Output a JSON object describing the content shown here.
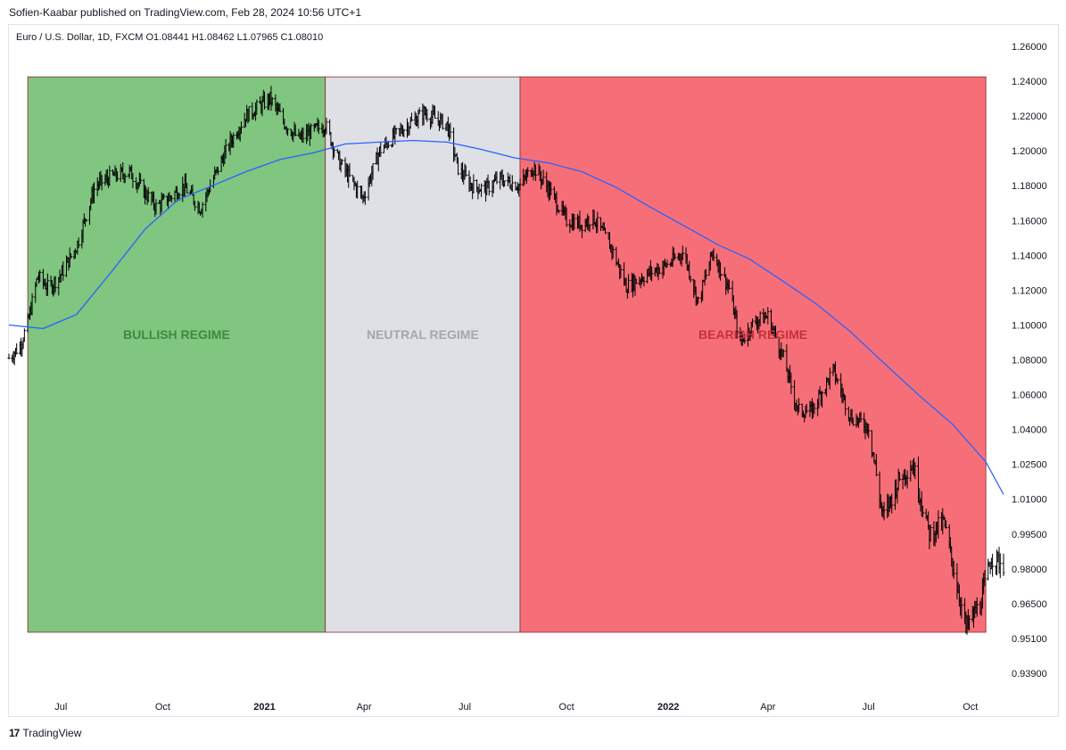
{
  "header": {
    "published": "Sofien-Kaabar published on TradingView.com, Feb 28, 2024 10:56 UTC+1",
    "symbol_line": "Euro / U.S. Dollar, 1D, FXCM  O1.08441  H1.08462  L1.07965  C1.08010"
  },
  "footer": {
    "logo_mark": "17",
    "brand": "TradingView"
  },
  "chart_data": {
    "type": "line",
    "title": "",
    "xlabel": "",
    "ylabel": "",
    "x_range": [
      "2020-05-15",
      "2022-10-31"
    ],
    "ylim": [
      0.939,
      1.26
    ],
    "y_tick_labels": [
      "1.26000",
      "1.24000",
      "1.22000",
      "1.20000",
      "1.18000",
      "1.16000",
      "1.14000",
      "1.12000",
      "1.10000",
      "1.08000",
      "1.06000",
      "1.04000",
      "1.02500",
      "1.01000",
      "0.99500",
      "0.98000",
      "0.96500",
      "0.95100",
      "0.93900"
    ],
    "y_tick_values": [
      1.26,
      1.24,
      1.22,
      1.2,
      1.18,
      1.16,
      1.14,
      1.12,
      1.1,
      1.08,
      1.06,
      1.04,
      1.025,
      1.01,
      0.995,
      0.98,
      0.965,
      0.951,
      0.939
    ],
    "x_tick_labels": [
      "Jul",
      "Oct",
      "2021",
      "Apr",
      "Jul",
      "Oct",
      "2022",
      "Apr",
      "Jul",
      "Oct"
    ],
    "x_tick_dates": [
      "2020-07-01",
      "2020-10-01",
      "2021-01-01",
      "2021-04-01",
      "2021-07-01",
      "2021-10-01",
      "2022-01-01",
      "2022-04-01",
      "2022-07-01",
      "2022-10-01"
    ],
    "x_tick_bold": [
      false,
      false,
      true,
      false,
      false,
      false,
      true,
      false,
      false,
      false
    ],
    "regimes": [
      {
        "label": "BULLISH REGIME",
        "start": "2020-06-01",
        "end": "2021-02-25",
        "y_top": 1.2425,
        "y_bottom": 0.9535,
        "fill": "#80c580",
        "text_color": "#3c8a3c"
      },
      {
        "label": "NEUTRAL REGIME",
        "start": "2021-02-25",
        "end": "2021-08-20",
        "y_top": 1.2425,
        "y_bottom": 0.9535,
        "fill": "#dfe0e6",
        "text_color": "#a3a6af"
      },
      {
        "label": "BEARISH REGIME",
        "start": "2021-08-20",
        "end": "2022-10-15",
        "y_top": 1.2425,
        "y_bottom": 0.9535,
        "fill": "#f66f78",
        "text_color": "#c7303c"
      }
    ],
    "series": [
      {
        "kind": "price",
        "color": "#000000",
        "x": [
          "2020-05-15",
          "2020-05-25",
          "2020-06-01",
          "2020-06-10",
          "2020-06-20",
          "2020-07-01",
          "2020-07-15",
          "2020-08-01",
          "2020-08-15",
          "2020-09-01",
          "2020-09-15",
          "2020-09-25",
          "2020-10-05",
          "2020-10-20",
          "2020-11-04",
          "2020-11-15",
          "2020-12-01",
          "2020-12-15",
          "2021-01-06",
          "2021-01-20",
          "2021-02-01",
          "2021-02-10",
          "2021-02-25",
          "2021-03-10",
          "2021-03-31",
          "2021-04-15",
          "2021-05-01",
          "2021-05-25",
          "2021-06-15",
          "2021-06-25",
          "2021-07-07",
          "2021-07-20",
          "2021-08-01",
          "2021-08-20",
          "2021-09-01",
          "2021-09-15",
          "2021-10-01",
          "2021-10-15",
          "2021-10-25",
          "2021-11-10",
          "2021-11-24",
          "2021-12-15",
          "2022-01-01",
          "2022-01-15",
          "2022-01-28",
          "2022-02-10",
          "2022-02-25",
          "2022-03-07",
          "2022-03-20",
          "2022-04-01",
          "2022-04-15",
          "2022-04-28",
          "2022-05-10",
          "2022-05-30",
          "2022-06-15",
          "2022-07-01",
          "2022-07-14",
          "2022-07-30",
          "2022-08-10",
          "2022-08-25",
          "2022-09-07",
          "2022-09-27",
          "2022-10-10",
          "2022-10-20",
          "2022-10-31"
        ],
        "values": [
          1.081,
          1.088,
          1.101,
          1.128,
          1.121,
          1.129,
          1.145,
          1.18,
          1.185,
          1.188,
          1.176,
          1.168,
          1.172,
          1.18,
          1.167,
          1.183,
          1.205,
          1.22,
          1.23,
          1.215,
          1.207,
          1.21,
          1.215,
          1.193,
          1.173,
          1.2,
          1.21,
          1.222,
          1.215,
          1.19,
          1.18,
          1.178,
          1.184,
          1.18,
          1.191,
          1.178,
          1.16,
          1.158,
          1.162,
          1.145,
          1.122,
          1.13,
          1.135,
          1.142,
          1.113,
          1.142,
          1.121,
          1.09,
          1.102,
          1.105,
          1.081,
          1.051,
          1.05,
          1.074,
          1.047,
          1.042,
          1.002,
          1.02,
          1.025,
          0.995,
          1.0,
          0.955,
          0.965,
          0.985,
          0.982
        ]
      },
      {
        "kind": "moving-average",
        "color": "#2962ff",
        "x": [
          "2020-05-15",
          "2020-06-15",
          "2020-07-15",
          "2020-08-15",
          "2020-09-15",
          "2020-10-15",
          "2020-11-15",
          "2020-12-15",
          "2021-01-15",
          "2021-02-15",
          "2021-03-15",
          "2021-04-15",
          "2021-05-15",
          "2021-06-15",
          "2021-07-15",
          "2021-08-15",
          "2021-09-15",
          "2021-10-15",
          "2021-11-15",
          "2021-12-15",
          "2022-01-15",
          "2022-02-15",
          "2022-03-15",
          "2022-04-15",
          "2022-05-15",
          "2022-06-15",
          "2022-07-15",
          "2022-08-15",
          "2022-09-15",
          "2022-10-15",
          "2022-10-31"
        ],
        "values": [
          1.1,
          1.098,
          1.106,
          1.13,
          1.155,
          1.172,
          1.18,
          1.188,
          1.195,
          1.199,
          1.204,
          1.205,
          1.206,
          1.205,
          1.201,
          1.196,
          1.193,
          1.188,
          1.179,
          1.168,
          1.157,
          1.146,
          1.138,
          1.125,
          1.112,
          1.096,
          1.078,
          1.06,
          1.043,
          1.026,
          1.012
        ]
      }
    ]
  }
}
